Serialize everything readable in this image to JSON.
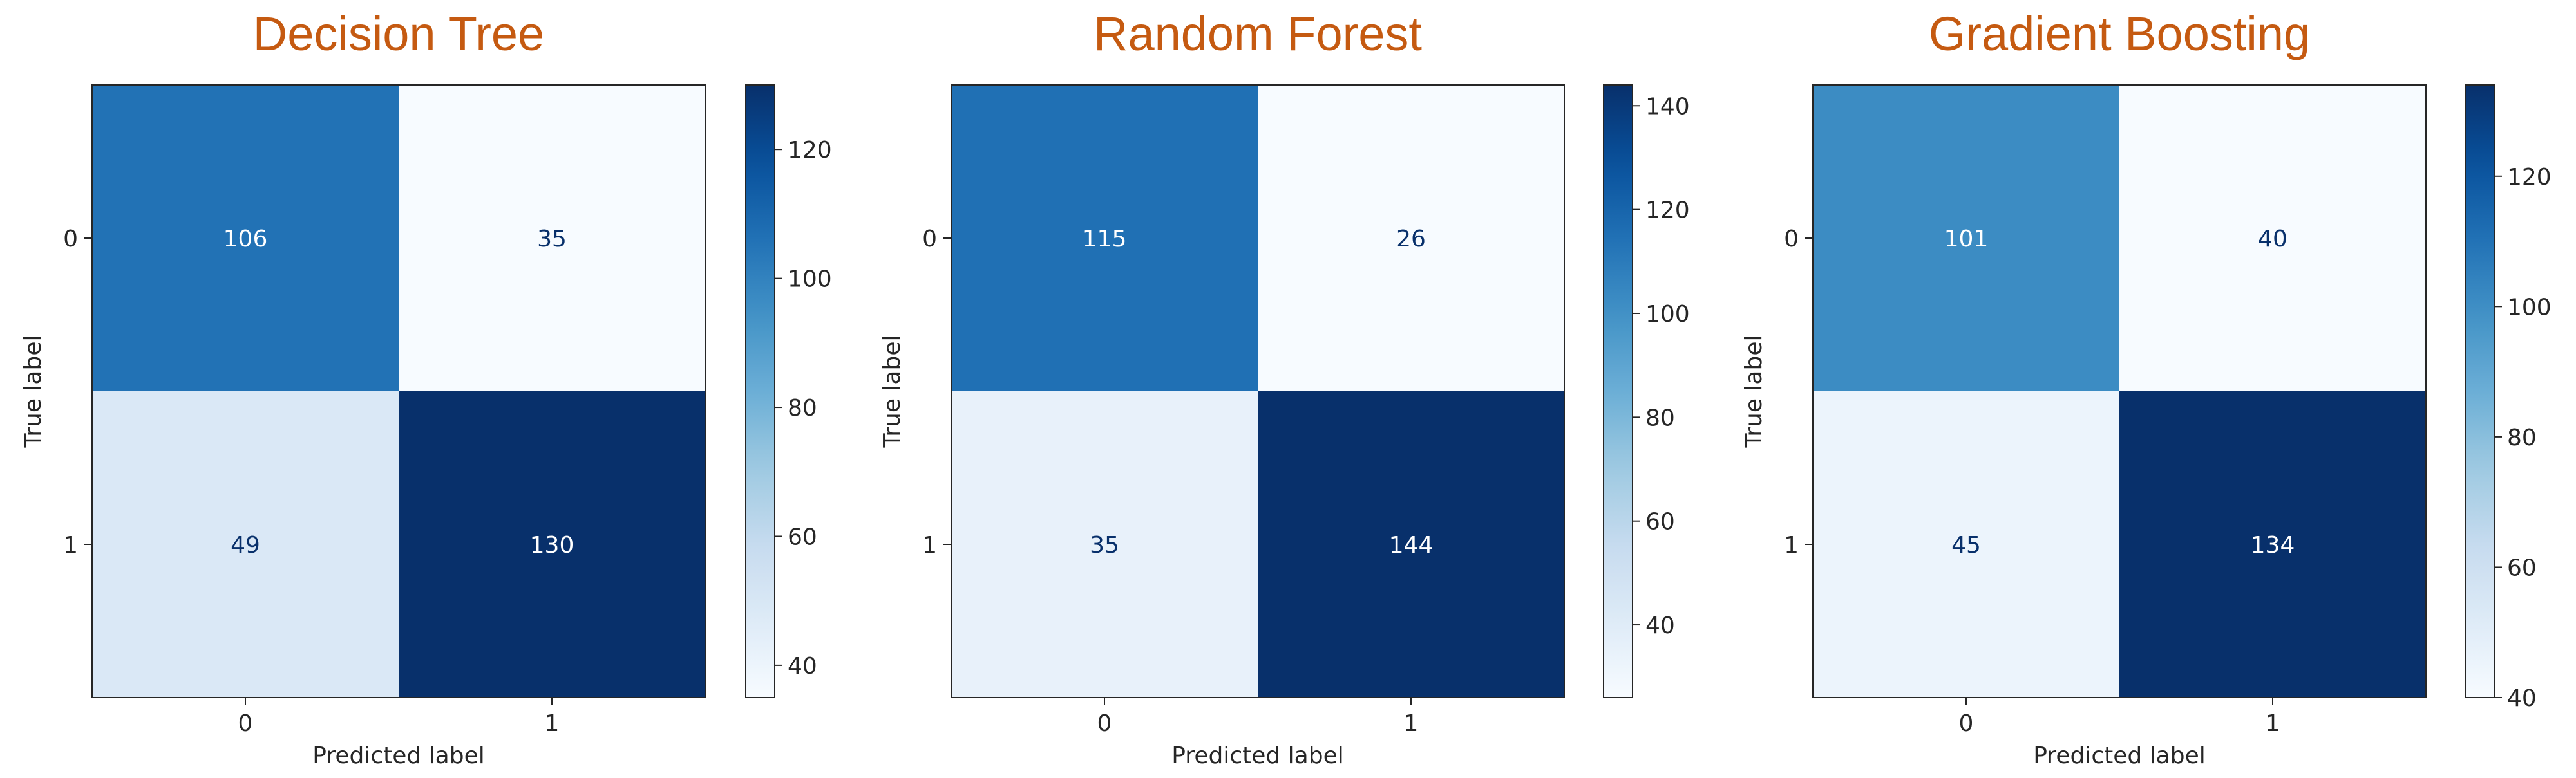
{
  "chart_data": [
    {
      "type": "heatmap",
      "title": "Decision Tree",
      "xlabel": "Predicted label",
      "ylabel": "True label",
      "x_ticks": [
        "0",
        "1"
      ],
      "y_ticks": [
        "0",
        "1"
      ],
      "matrix": [
        [
          106,
          35
        ],
        [
          49,
          130
        ]
      ],
      "colormap": "Blues",
      "colorbar": {
        "range": [
          35,
          130
        ],
        "ticks": [
          40,
          60,
          80,
          100,
          120
        ]
      }
    },
    {
      "type": "heatmap",
      "title": "Random Forest",
      "xlabel": "Predicted label",
      "ylabel": "True label",
      "x_ticks": [
        "0",
        "1"
      ],
      "y_ticks": [
        "0",
        "1"
      ],
      "matrix": [
        [
          115,
          26
        ],
        [
          35,
          144
        ]
      ],
      "colormap": "Blues",
      "colorbar": {
        "range": [
          26,
          144
        ],
        "ticks": [
          40,
          60,
          80,
          100,
          120,
          140
        ]
      }
    },
    {
      "type": "heatmap",
      "title": "Gradient Boosting",
      "xlabel": "Predicted label",
      "ylabel": "True label",
      "x_ticks": [
        "0",
        "1"
      ],
      "y_ticks": [
        "0",
        "1"
      ],
      "matrix": [
        [
          101,
          40
        ],
        [
          45,
          134
        ]
      ],
      "colormap": "Blues",
      "colorbar": {
        "range": [
          40,
          134
        ],
        "ticks": [
          40,
          60,
          80,
          100,
          120
        ]
      }
    }
  ],
  "colors": {
    "title": "#c55a11",
    "axis": "#262626",
    "text_light": "#ffffff",
    "text_dark": "#08306b",
    "cmap_stops": [
      "#f7fbff",
      "#deebf7",
      "#c6dbef",
      "#9ecae1",
      "#6baed6",
      "#4292c6",
      "#2171b5",
      "#08519c",
      "#08306b"
    ]
  }
}
